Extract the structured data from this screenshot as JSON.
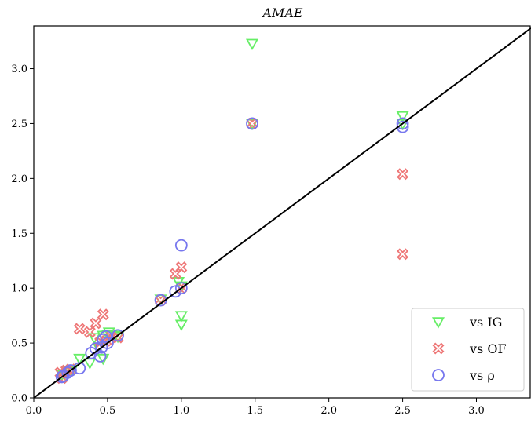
{
  "chart_data": {
    "type": "scatter",
    "title": "AMAE",
    "xlabel": "",
    "ylabel": "",
    "xlim": [
      0.0,
      3.37
    ],
    "ylim": [
      0.0,
      3.39
    ],
    "xticks": [
      0.0,
      0.5,
      1.0,
      1.5,
      2.0,
      2.5,
      3.0
    ],
    "yticks": [
      0.0,
      0.5,
      1.0,
      1.5,
      2.0,
      2.5,
      3.0
    ],
    "tick_labels_x": [
      "0.0",
      "0.5",
      "1.0",
      "1.5",
      "2.0",
      "2.5",
      "3.0"
    ],
    "tick_labels_y": [
      "0.0",
      "0.5",
      "1.0",
      "1.5",
      "2.0",
      "2.5",
      "3.0"
    ],
    "reference_line": {
      "x": [
        0,
        3.37
      ],
      "y": [
        0,
        3.37
      ],
      "color": "#000000"
    },
    "grid": false,
    "legend_position": "bottom-right",
    "series": [
      {
        "name": "vs IG",
        "marker": "triangle-down",
        "color": "#66ee66",
        "points": [
          [
            0.19,
            0.21
          ],
          [
            0.21,
            0.22
          ],
          [
            0.23,
            0.25
          ],
          [
            0.26,
            0.26
          ],
          [
            0.31,
            0.36
          ],
          [
            0.38,
            0.32
          ],
          [
            0.41,
            0.55
          ],
          [
            0.44,
            0.46
          ],
          [
            0.47,
            0.36
          ],
          [
            0.47,
            0.57
          ],
          [
            0.5,
            0.58
          ],
          [
            0.51,
            0.6
          ],
          [
            0.55,
            0.57
          ],
          [
            0.57,
            0.56
          ],
          [
            0.86,
            0.9
          ],
          [
            0.98,
            1.06
          ],
          [
            1.0,
            0.75
          ],
          [
            1.0,
            0.67
          ],
          [
            1.0,
            1.02
          ],
          [
            1.48,
            3.23
          ],
          [
            1.48,
            2.5
          ],
          [
            2.5,
            2.57
          ],
          [
            2.5,
            2.5
          ]
        ]
      },
      {
        "name": "vs OF",
        "marker": "x-filled",
        "color": "#ee7777",
        "points": [
          [
            0.18,
            0.23
          ],
          [
            0.19,
            0.18
          ],
          [
            0.22,
            0.25
          ],
          [
            0.25,
            0.26
          ],
          [
            0.31,
            0.63
          ],
          [
            0.38,
            0.6
          ],
          [
            0.42,
            0.68
          ],
          [
            0.45,
            0.51
          ],
          [
            0.47,
            0.76
          ],
          [
            0.49,
            0.52
          ],
          [
            0.52,
            0.55
          ],
          [
            0.57,
            0.55
          ],
          [
            0.86,
            0.89
          ],
          [
            0.96,
            1.13
          ],
          [
            1.0,
            1.19
          ],
          [
            1.0,
            1.0
          ],
          [
            1.48,
            2.5
          ],
          [
            2.5,
            2.04
          ],
          [
            2.5,
            1.31
          ]
        ]
      },
      {
        "name": "vs ρ",
        "marker": "circle-open",
        "color": "#7777ee",
        "points": [
          [
            0.19,
            0.19
          ],
          [
            0.2,
            0.2
          ],
          [
            0.23,
            0.23
          ],
          [
            0.25,
            0.25
          ],
          [
            0.31,
            0.27
          ],
          [
            0.39,
            0.41
          ],
          [
            0.42,
            0.45
          ],
          [
            0.45,
            0.38
          ],
          [
            0.46,
            0.46
          ],
          [
            0.47,
            0.53
          ],
          [
            0.49,
            0.56
          ],
          [
            0.5,
            0.5
          ],
          [
            0.57,
            0.57
          ],
          [
            0.86,
            0.89
          ],
          [
            0.96,
            0.97
          ],
          [
            1.0,
            1.0
          ],
          [
            1.0,
            1.39
          ],
          [
            1.48,
            2.5
          ],
          [
            2.5,
            2.5
          ],
          [
            2.5,
            2.47
          ]
        ]
      }
    ],
    "legend": [
      {
        "label": "vs IG"
      },
      {
        "label": "vs OF"
      },
      {
        "label": "vs ρ"
      }
    ]
  }
}
